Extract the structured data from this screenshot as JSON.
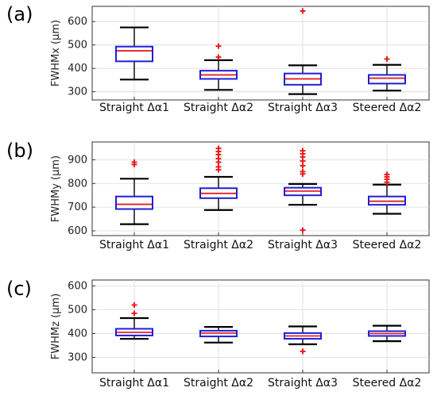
{
  "colors": {
    "box": "#1f1fd8",
    "median": "#e0202a",
    "whisker": "#000000",
    "outlier": "#ee1c1c",
    "grid": "#dadada",
    "frame": "#333333"
  },
  "chart_data": [
    {
      "type": "box",
      "panel": "(a)",
      "ylabel": "FWHMx (µm)",
      "ylim": [
        265,
        665
      ],
      "yticks": [
        300,
        400,
        500,
        600
      ],
      "grid": true,
      "categories": [
        "Straight Δα1",
        "Straight Δα2",
        "Straight Δα3",
        "Steered Δα2"
      ],
      "boxes": [
        {
          "whisker_low": 352,
          "q1": 430,
          "median": 475,
          "q3": 493,
          "whisker_high": 575,
          "outliers": []
        },
        {
          "whisker_low": 308,
          "q1": 355,
          "median": 372,
          "q3": 390,
          "whisker_high": 435,
          "outliers": [
            448,
            495
          ]
        },
        {
          "whisker_low": 290,
          "q1": 330,
          "median": 355,
          "q3": 378,
          "whisker_high": 413,
          "outliers": [
            645
          ]
        },
        {
          "whisker_low": 305,
          "q1": 335,
          "median": 358,
          "q3": 372,
          "whisker_high": 415,
          "outliers": [
            440
          ]
        }
      ]
    },
    {
      "type": "box",
      "panel": "(b)",
      "ylabel": "FWHMy (µm)",
      "ylim": [
        580,
        975
      ],
      "yticks": [
        600,
        700,
        800,
        900
      ],
      "grid": true,
      "categories": [
        "Straight Δα1",
        "Straight Δα2",
        "Straight Δα3",
        "Steered Δα2"
      ],
      "boxes": [
        {
          "whisker_low": 628,
          "q1": 692,
          "median": 712,
          "q3": 745,
          "whisker_high": 820,
          "outliers": [
            880,
            890
          ]
        },
        {
          "whisker_low": 688,
          "q1": 738,
          "median": 758,
          "q3": 780,
          "whisker_high": 828,
          "outliers": [
            858,
            870,
            890,
            905,
            922,
            935,
            948
          ]
        },
        {
          "whisker_low": 710,
          "q1": 750,
          "median": 768,
          "q3": 782,
          "whisker_high": 798,
          "outliers": [
            603,
            840,
            850,
            875,
            895,
            912,
            925,
            938
          ]
        },
        {
          "whisker_low": 672,
          "q1": 710,
          "median": 725,
          "q3": 745,
          "whisker_high": 795,
          "outliers": [
            805,
            818,
            828,
            838
          ]
        }
      ]
    },
    {
      "type": "box",
      "panel": "(c)",
      "ylabel": "FWHMz (µm)",
      "ylim": [
        235,
        625
      ],
      "yticks": [
        300,
        400,
        500,
        600
      ],
      "grid": true,
      "categories": [
        "Straight Δα1",
        "Straight Δα2",
        "Straight Δα3",
        "Steered Δα2"
      ],
      "boxes": [
        {
          "whisker_low": 378,
          "q1": 392,
          "median": 405,
          "q3": 420,
          "whisker_high": 465,
          "outliers": [
            485,
            520
          ]
        },
        {
          "whisker_low": 362,
          "q1": 388,
          "median": 402,
          "q3": 412,
          "whisker_high": 428,
          "outliers": []
        },
        {
          "whisker_low": 355,
          "q1": 378,
          "median": 390,
          "q3": 402,
          "whisker_high": 430,
          "outliers": [
            325
          ]
        },
        {
          "whisker_low": 368,
          "q1": 390,
          "median": 400,
          "q3": 410,
          "whisker_high": 433,
          "outliers": []
        }
      ]
    }
  ]
}
